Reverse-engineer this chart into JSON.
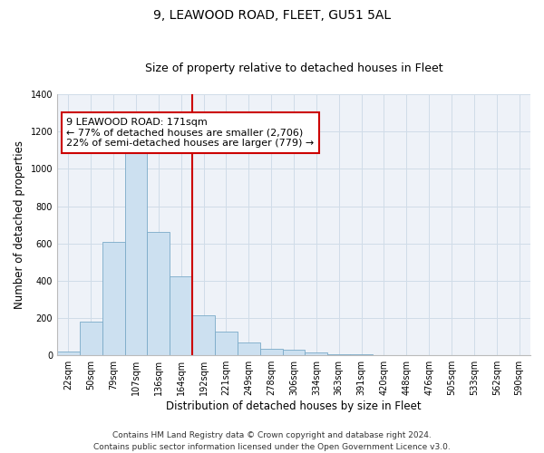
{
  "title": "9, LEAWOOD ROAD, FLEET, GU51 5AL",
  "subtitle": "Size of property relative to detached houses in Fleet",
  "xlabel": "Distribution of detached houses by size in Fleet",
  "ylabel": "Number of detached properties",
  "bar_color": "#cce0f0",
  "bar_edge_color": "#7aaac8",
  "grid_color": "#d0dce8",
  "bg_color": "#eef2f8",
  "categories": [
    "22sqm",
    "50sqm",
    "79sqm",
    "107sqm",
    "136sqm",
    "164sqm",
    "192sqm",
    "221sqm",
    "249sqm",
    "278sqm",
    "306sqm",
    "334sqm",
    "363sqm",
    "391sqm",
    "420sqm",
    "448sqm",
    "476sqm",
    "505sqm",
    "533sqm",
    "562sqm",
    "590sqm"
  ],
  "values": [
    20,
    180,
    610,
    1095,
    660,
    425,
    215,
    125,
    70,
    35,
    28,
    14,
    8,
    5,
    2,
    1,
    0,
    0,
    0,
    0,
    0
  ],
  "ylim": [
    0,
    1400
  ],
  "yticks": [
    0,
    200,
    400,
    600,
    800,
    1000,
    1200,
    1400
  ],
  "vline_x": 6.0,
  "vline_color": "#cc0000",
  "annotation_text": "9 LEAWOOD ROAD: 171sqm\n← 77% of detached houses are smaller (2,706)\n22% of semi-detached houses are larger (779) →",
  "annotation_box_color": "#ffffff",
  "annotation_box_edge": "#cc0000",
  "footer_line1": "Contains HM Land Registry data © Crown copyright and database right 2024.",
  "footer_line2": "Contains public sector information licensed under the Open Government Licence v3.0.",
  "title_fontsize": 10,
  "subtitle_fontsize": 9,
  "annotation_fontsize": 8,
  "axis_label_fontsize": 8.5,
  "tick_fontsize": 7,
  "footer_fontsize": 6.5
}
